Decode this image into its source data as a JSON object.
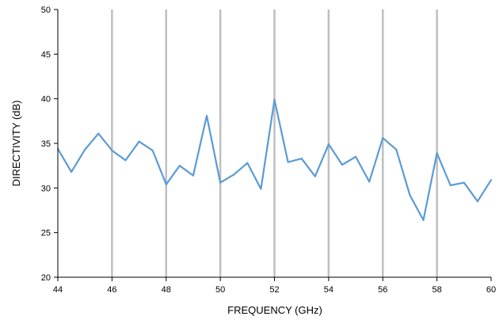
{
  "chart_data": {
    "type": "line",
    "xlabel": "FREQUENCY (GHz)",
    "ylabel": "DIRECTIVITY (dB)",
    "xlim": [
      44,
      60
    ],
    "ylim": [
      20,
      50
    ],
    "x_ticks": [
      44,
      46,
      48,
      50,
      52,
      54,
      56,
      58,
      60
    ],
    "y_ticks": [
      20,
      25,
      30,
      35,
      40,
      45,
      50
    ],
    "grid": "vertical",
    "legend": "none",
    "series": [
      {
        "color": "#5B9BD5",
        "x": [
          44,
          44.5,
          45,
          45.5,
          46,
          46.5,
          47,
          47.5,
          48,
          48.5,
          49,
          49.5,
          50,
          50.5,
          51,
          51.5,
          52,
          52.5,
          53,
          53.5,
          54,
          54.5,
          55,
          55.5,
          56,
          56.5,
          57,
          57.5,
          58,
          58.5,
          59,
          59.5,
          60
        ],
        "values": [
          34.4,
          31.8,
          34.3,
          36.1,
          34.2,
          33.1,
          35.2,
          34.2,
          30.4,
          32.5,
          31.4,
          38.1,
          30.6,
          31.5,
          32.8,
          29.9,
          39.9,
          32.9,
          33.3,
          31.3,
          34.9,
          32.6,
          33.5,
          30.7,
          35.6,
          34.3,
          29.2,
          26.4,
          33.9,
          30.3,
          30.6,
          28.5,
          30.9
        ]
      }
    ]
  },
  "colors": {
    "grid": "#BFBFBF",
    "axis": "#000000",
    "line": "#5B9BD5"
  }
}
